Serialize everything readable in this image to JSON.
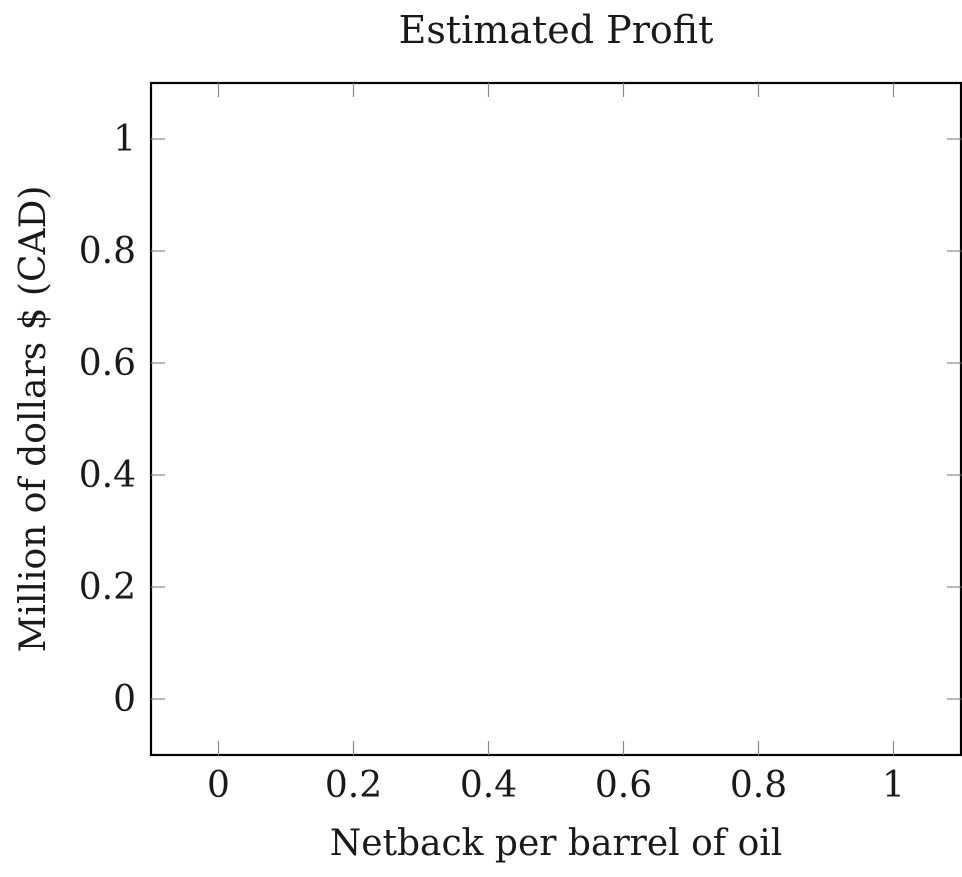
{
  "chart_data": {
    "type": "line",
    "title": "Estimated Profit",
    "xlabel": "Netback per barrel of oil",
    "ylabel": "Million of dollars $ (CAD)",
    "xlim": [
      -0.1,
      1.1
    ],
    "ylim": [
      -0.1,
      1.1
    ],
    "xticks": [
      "0",
      "0.2",
      "0.4",
      "0.6",
      "0.8",
      "1"
    ],
    "yticks": [
      "0",
      "0.2",
      "0.4",
      "0.6",
      "0.8",
      "1"
    ],
    "xtick_values": [
      0,
      0.2,
      0.4,
      0.6,
      0.8,
      1
    ],
    "ytick_values": [
      0,
      0.2,
      0.4,
      0.6,
      0.8,
      1
    ],
    "series": [],
    "grid": false,
    "colors": {
      "frame": "#000000",
      "ticks": "#8a8a8a",
      "text": "#1a1a1a"
    }
  }
}
